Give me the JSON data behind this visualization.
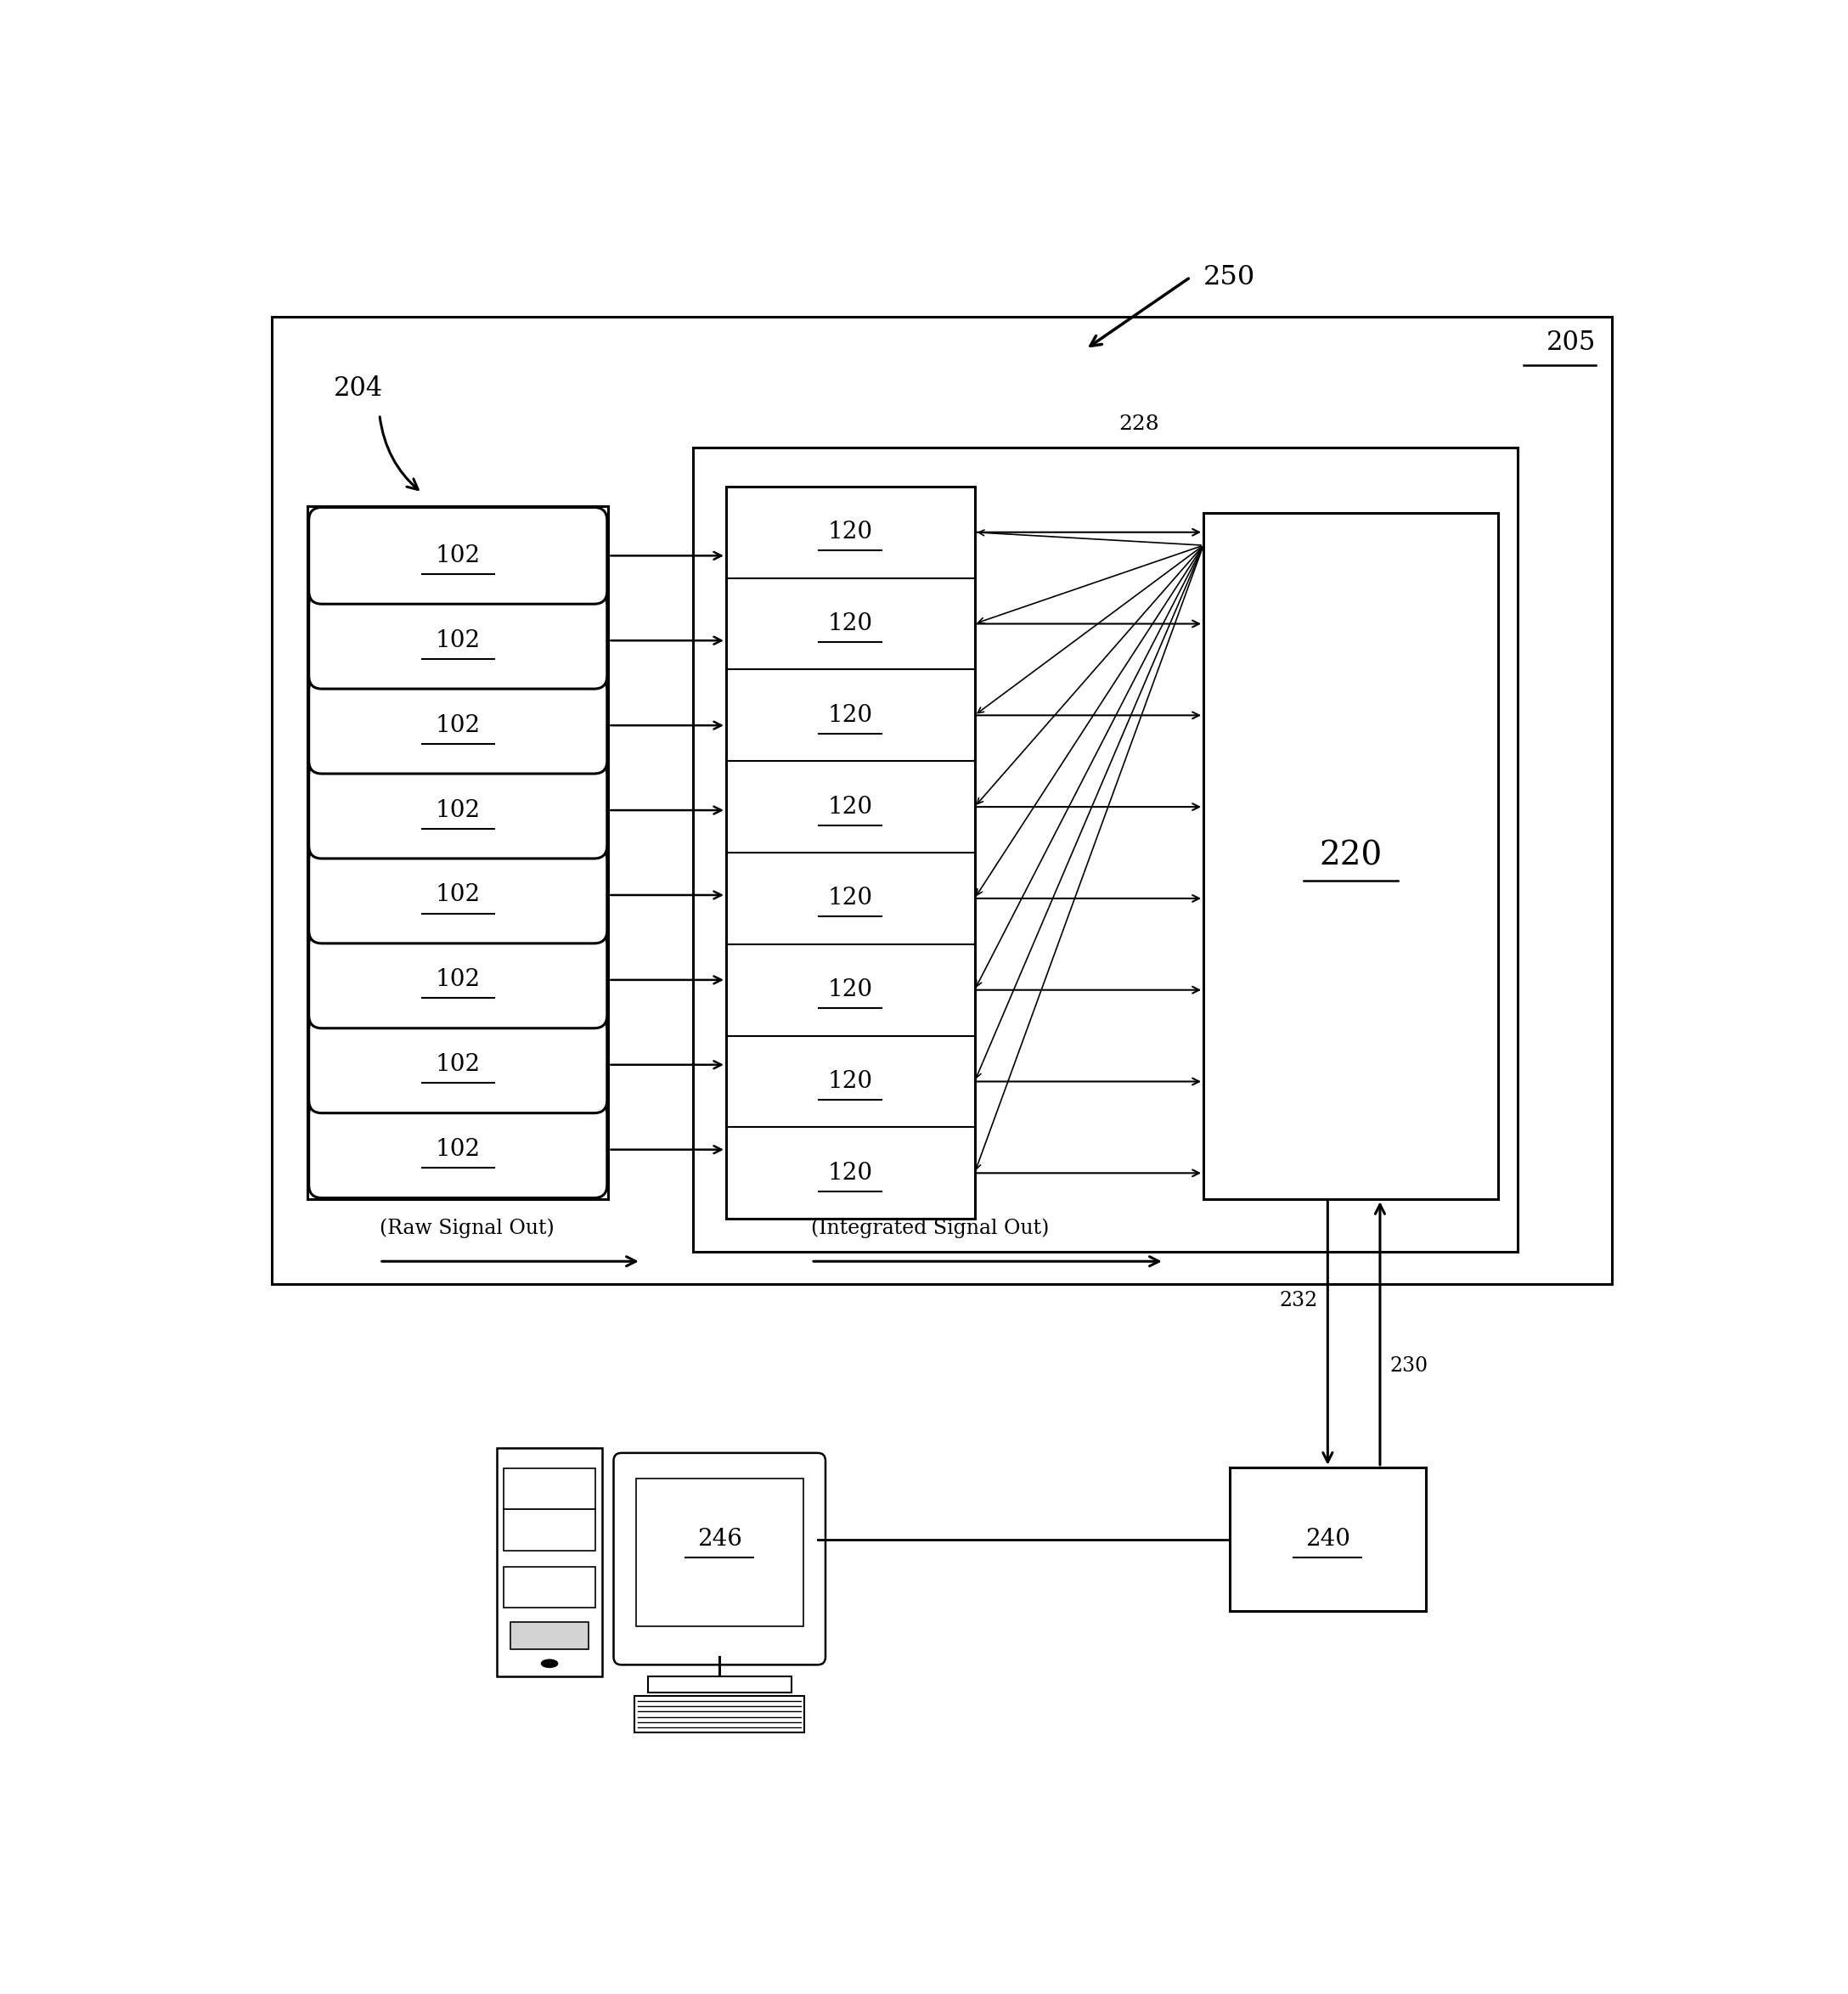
{
  "bg_color": "#ffffff",
  "num_rows": 8,
  "label_102": "102",
  "label_120": "120",
  "label_220": "220",
  "label_246": "246",
  "label_240": "240",
  "label_204": "204",
  "label_205": "205",
  "label_228": "228",
  "label_232": "232",
  "label_230": "230",
  "label_250": "250",
  "raw_signal_text": "(Raw Signal Out)",
  "integrated_signal_text": "(Integrated Signal Out)",
  "fig_w": 21.76,
  "fig_h": 23.48
}
